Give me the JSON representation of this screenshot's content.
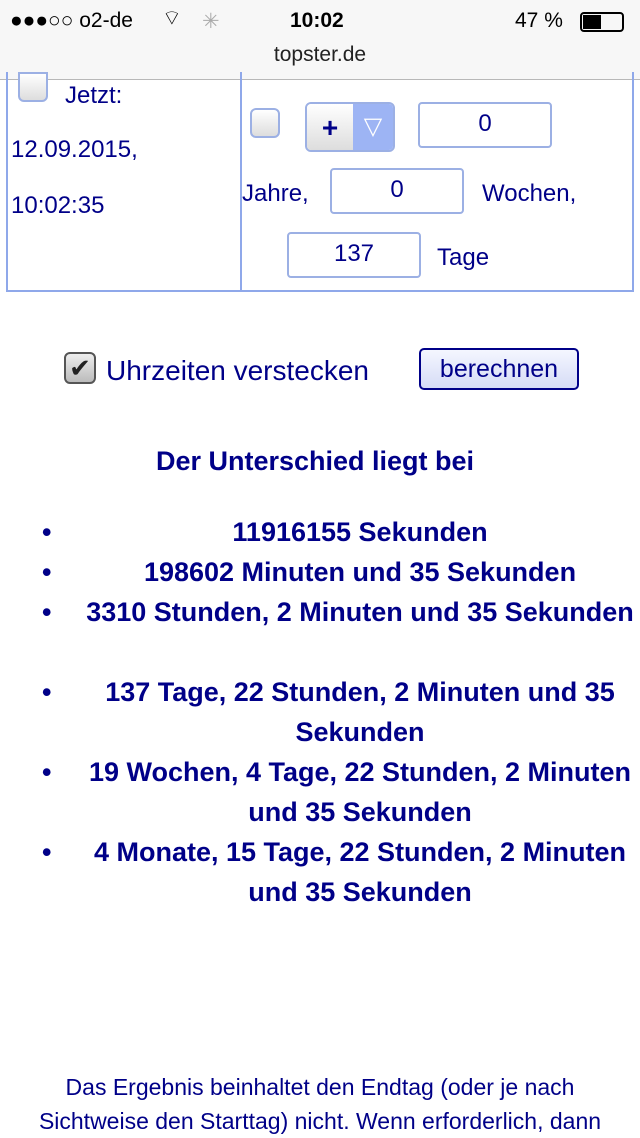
{
  "status_bar": {
    "carrier": "●●●○○ o2-de",
    "time": "10:02",
    "battery": "47 %"
  },
  "browser": {
    "url": "topster.de"
  },
  "left_cell": {
    "now_label": "Jetzt:",
    "date": "12.09.2015,",
    "time": "10:02:35"
  },
  "right_cell": {
    "sign": "+",
    "years_value": "0",
    "years_label": "Jahre,",
    "weeks_value": "0",
    "weeks_label": "Wochen,",
    "days_value": "137",
    "days_label": "Tage"
  },
  "options": {
    "hide_times_label": "Uhrzeiten verstecken",
    "hide_times_checked": true,
    "calculate_button": "berechnen"
  },
  "result": {
    "heading": "Der Unterschied liegt bei",
    "items": [
      "11916155 Sekunden",
      "198602 Minuten und 35 Sekunden",
      "3310 Stunden, 2 Minuten und 35 Sekunden",
      "137 Tage, 22 Stunden, 2 Minuten und 35 Sekunden",
      "19 Wochen, 4 Tage, 22 Stunden, 2 Minuten und 35 Sekunden",
      "4 Monate, 15 Tage, 22 Stunden, 2 Minuten und 35 Sekunden"
    ]
  },
  "note": "Das Ergebnis beinhaltet den Endtag (oder je nach Sichtweise den Starttag) nicht. Wenn erforderlich, dann"
}
